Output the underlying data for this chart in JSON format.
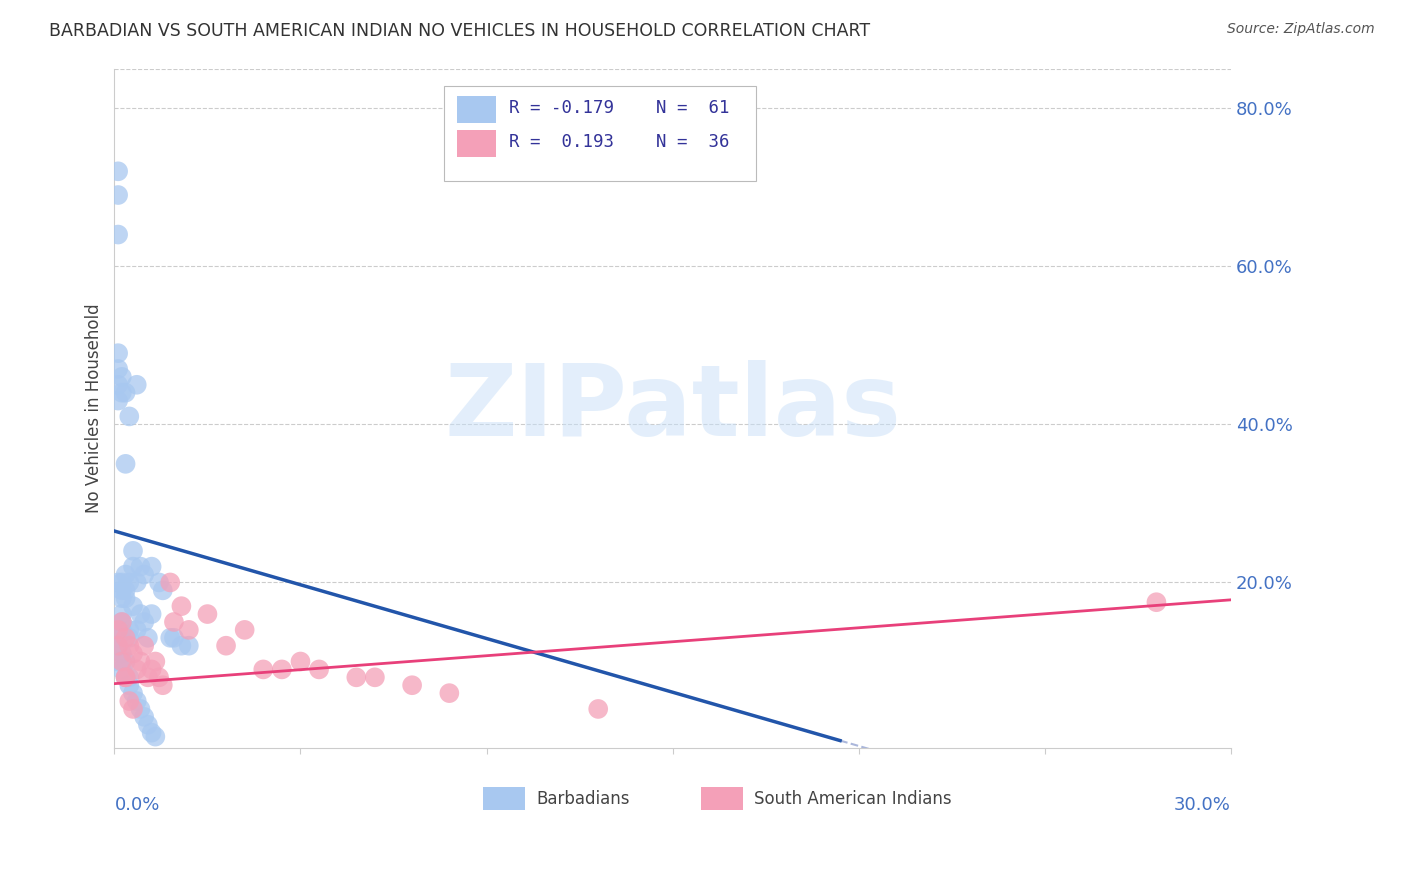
{
  "title": "BARBADIAN VS SOUTH AMERICAN INDIAN NO VEHICLES IN HOUSEHOLD CORRELATION CHART",
  "source": "Source: ZipAtlas.com",
  "ylabel": "No Vehicles in Household",
  "barbadian_color": "#a8c8f0",
  "south_american_color": "#f4a0b8",
  "barbadian_line_color": "#2255aa",
  "south_american_line_color": "#e8407a",
  "dashed_line_color": "#8899cc",
  "watermark_color": "#c8dff8",
  "xlim": [
    0.0,
    0.3
  ],
  "ylim": [
    -0.01,
    0.85
  ],
  "right_yticks": [
    0.0,
    0.2,
    0.4,
    0.6,
    0.8
  ],
  "right_yticklabels": [
    "",
    "20.0%",
    "40.0%",
    "60.0%",
    "80.0%"
  ],
  "barbadian_line_x0": 0.0,
  "barbadian_line_y0": 0.265,
  "barbadian_line_x1": 0.195,
  "barbadian_line_y1": 0.0,
  "south_american_line_x0": 0.0,
  "south_american_line_x1": 0.3,
  "south_american_line_y0": 0.072,
  "south_american_line_y1": 0.178,
  "barbadian_x": [
    0.001,
    0.001,
    0.001,
    0.001,
    0.001,
    0.001,
    0.001,
    0.001,
    0.002,
    0.002,
    0.002,
    0.002,
    0.002,
    0.002,
    0.002,
    0.002,
    0.003,
    0.003,
    0.003,
    0.003,
    0.003,
    0.004,
    0.004,
    0.004,
    0.004,
    0.005,
    0.005,
    0.005,
    0.006,
    0.006,
    0.006,
    0.007,
    0.007,
    0.008,
    0.008,
    0.009,
    0.01,
    0.01,
    0.012,
    0.013,
    0.015,
    0.016,
    0.018,
    0.02,
    0.001,
    0.001,
    0.001,
    0.002,
    0.002,
    0.003,
    0.003,
    0.004,
    0.004,
    0.005,
    0.006,
    0.007,
    0.008,
    0.009,
    0.01,
    0.011
  ],
  "barbadian_y": [
    0.72,
    0.69,
    0.64,
    0.49,
    0.47,
    0.45,
    0.43,
    0.2,
    0.46,
    0.44,
    0.2,
    0.19,
    0.18,
    0.16,
    0.15,
    0.14,
    0.44,
    0.35,
    0.21,
    0.19,
    0.18,
    0.41,
    0.2,
    0.14,
    0.13,
    0.24,
    0.22,
    0.17,
    0.45,
    0.2,
    0.14,
    0.22,
    0.16,
    0.21,
    0.15,
    0.13,
    0.22,
    0.16,
    0.2,
    0.19,
    0.13,
    0.13,
    0.12,
    0.12,
    0.13,
    0.12,
    0.1,
    0.11,
    0.09,
    0.1,
    0.08,
    0.08,
    0.07,
    0.06,
    0.05,
    0.04,
    0.03,
    0.02,
    0.01,
    0.005
  ],
  "south_american_x": [
    0.001,
    0.001,
    0.002,
    0.002,
    0.003,
    0.003,
    0.004,
    0.005,
    0.006,
    0.007,
    0.008,
    0.009,
    0.01,
    0.011,
    0.012,
    0.013,
    0.015,
    0.016,
    0.018,
    0.02,
    0.025,
    0.03,
    0.035,
    0.04,
    0.045,
    0.05,
    0.055,
    0.065,
    0.07,
    0.08,
    0.09,
    0.003,
    0.004,
    0.005,
    0.28,
    0.13
  ],
  "south_american_y": [
    0.14,
    0.12,
    0.15,
    0.1,
    0.13,
    0.08,
    0.12,
    0.11,
    0.09,
    0.1,
    0.12,
    0.08,
    0.09,
    0.1,
    0.08,
    0.07,
    0.2,
    0.15,
    0.17,
    0.14,
    0.16,
    0.12,
    0.14,
    0.09,
    0.09,
    0.1,
    0.09,
    0.08,
    0.08,
    0.07,
    0.06,
    0.08,
    0.05,
    0.04,
    0.175,
    0.04
  ]
}
